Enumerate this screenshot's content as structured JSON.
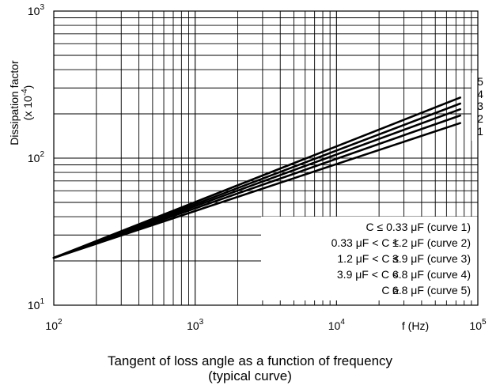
{
  "chart_data": {
    "type": "line",
    "x_scale": "log",
    "y_scale": "log",
    "xlim": [
      100,
      100000
    ],
    "ylim": [
      10,
      1000
    ],
    "x_ticks": [
      {
        "value": 100,
        "base": "10",
        "exp": "2"
      },
      {
        "value": 1000,
        "base": "10",
        "exp": "3"
      },
      {
        "value": 10000,
        "base": "10",
        "exp": "4"
      },
      {
        "value": 100000,
        "base": "10",
        "exp": "5"
      }
    ],
    "y_ticks": [
      {
        "value": 10,
        "base": "10",
        "exp": "1"
      },
      {
        "value": 100,
        "base": "10",
        "exp": "2"
      },
      {
        "value": 1000,
        "base": "10",
        "exp": "3"
      }
    ],
    "xlabel": "f (Hz)",
    "ylabel": {
      "line1": "Dissipation factor",
      "line2_prefix": "(x 10",
      "line2_exp": "-4",
      "line2_suffix": ")"
    },
    "grid": true,
    "series": [
      {
        "name": "1",
        "x": [
          100,
          75000
        ],
        "y": [
          21,
          173
        ]
      },
      {
        "name": "2",
        "x": [
          100,
          75000
        ],
        "y": [
          21,
          195
        ]
      },
      {
        "name": "3",
        "x": [
          100,
          75000
        ],
        "y": [
          21,
          215
        ]
      },
      {
        "name": "4",
        "x": [
          100,
          75000
        ],
        "y": [
          21,
          235
        ]
      },
      {
        "name": "5",
        "x": [
          100,
          75000
        ],
        "y": [
          21,
          258
        ]
      }
    ],
    "legend": {
      "placement": "bottom-right",
      "entries": [
        {
          "left": "",
          "right": "C ≤ 0.33 μF (curve 1)"
        },
        {
          "left": "0.33 μF < C ≤",
          "right": "1.2 μF (curve 2)"
        },
        {
          "left": "1.2 μF < C ≤",
          "right": "3.9 μF (curve 3)"
        },
        {
          "left": "3.9 μF < C <",
          "right": "6.8 μF (curve 4)"
        },
        {
          "left": "C ≥",
          "right": "6.8 μF (curve 5)"
        }
      ]
    },
    "caption": [
      "Tangent of loss angle as a function of frequency",
      "(typical curve)"
    ]
  }
}
